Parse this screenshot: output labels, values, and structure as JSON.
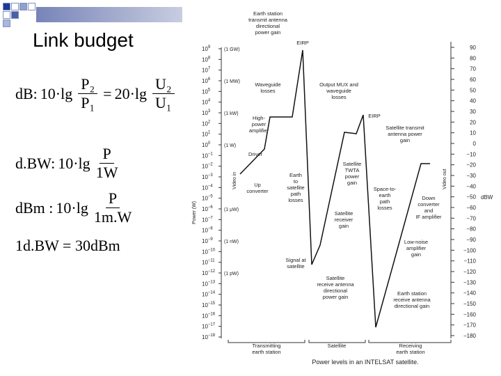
{
  "header": {
    "title": "Link budget"
  },
  "formulas": [
    {
      "prefix": "dB:",
      "lhs": "10·lg",
      "num": "P₂",
      "den": "P₁",
      "eq": "=",
      "rhs": "20·lg",
      "num2": "U₂",
      "den2": "U₁"
    },
    {
      "prefix": "d.BW:",
      "lhs": "10·lg",
      "num": "P",
      "den": "1W"
    },
    {
      "prefix": "dBm :",
      "lhs": "10·lg",
      "num": "P",
      "den": "1m.W"
    },
    {
      "text": "1d.BW = 30dBm"
    }
  ],
  "figure": {
    "left_axis_title": "Power (W)",
    "right_axis_title": "dBW",
    "video_in": "Video in",
    "video_out": "Video out",
    "left_ticks": [
      {
        "base": "10",
        "exp": "9"
      },
      {
        "base": "10",
        "exp": "8"
      },
      {
        "base": "10",
        "exp": "7"
      },
      {
        "base": "10",
        "exp": "6"
      },
      {
        "base": "10",
        "exp": "5"
      },
      {
        "base": "10",
        "exp": "4"
      },
      {
        "base": "10",
        "exp": "3"
      },
      {
        "base": "10",
        "exp": "2"
      },
      {
        "base": "10",
        "exp": "1"
      },
      {
        "base": "10",
        "exp": "0"
      },
      {
        "base": "10",
        "exp": "−1"
      },
      {
        "base": "10",
        "exp": "−2"
      },
      {
        "base": "10",
        "exp": "−3"
      },
      {
        "base": "10",
        "exp": "−4"
      },
      {
        "base": "10",
        "exp": "−5"
      },
      {
        "base": "10",
        "exp": "−6"
      },
      {
        "base": "10",
        "exp": "−7"
      },
      {
        "base": "10",
        "exp": "−8"
      },
      {
        "base": "10",
        "exp": "−9"
      },
      {
        "base": "10",
        "exp": "−10"
      },
      {
        "base": "10",
        "exp": "−11"
      },
      {
        "base": "10",
        "exp": "−12"
      },
      {
        "base": "10",
        "exp": "−13"
      },
      {
        "base": "10",
        "exp": "−14"
      },
      {
        "base": "10",
        "exp": "−15"
      },
      {
        "base": "10",
        "exp": "−16"
      },
      {
        "base": "10",
        "exp": "−17"
      },
      {
        "base": "10",
        "exp": "−18"
      }
    ],
    "left_units": [
      {
        "tick": 0,
        "text": "(1 GW)"
      },
      {
        "tick": 3,
        "text": "(1 MW)"
      },
      {
        "tick": 6,
        "text": "(1 kW)"
      },
      {
        "tick": 9,
        "text": "(1 W)"
      },
      {
        "tick": 15,
        "text": "(1 μW)"
      },
      {
        "tick": 18,
        "text": "(1 nW)"
      },
      {
        "tick": 21,
        "text": "(1 pW)"
      }
    ],
    "right_ticks": [
      "90",
      "80",
      "70",
      "60",
      "50",
      "40",
      "30",
      "20",
      "10",
      "0",
      "−10",
      "−20",
      "−30",
      "−40",
      "−50",
      "−60",
      "−70",
      "−80",
      "−90",
      "−100",
      "−110",
      "−120",
      "−130",
      "−140",
      "−150",
      "−160",
      "−170",
      "−180"
    ],
    "annotations": [
      [
        "Earth station",
        "transmit antenna",
        "directional",
        "power gain"
      ],
      [
        "EIRP"
      ],
      [
        "Waveguide",
        "losses"
      ],
      [
        "Output MUX and",
        "waveguide",
        "losses"
      ],
      [
        "High-",
        "power",
        "amplifier"
      ],
      [
        "EIRP"
      ],
      [
        "Satellite transmit",
        "antenna power",
        "gain"
      ],
      [
        "Driver"
      ],
      [
        "Earth",
        "to",
        "satellite",
        "path",
        "losses"
      ],
      [
        "Satellite",
        "TWTA",
        "power",
        "gain"
      ],
      [
        "Up",
        "converter"
      ],
      [
        "Space-to-",
        "earth",
        "path",
        "losses"
      ],
      [
        "Down",
        "converter",
        "and",
        "IF amplifier"
      ],
      [
        "Satellite",
        "receiver",
        "gain"
      ],
      [
        "Low-noise",
        "amplifier",
        "gain"
      ],
      [
        "Signal at",
        "satellite"
      ],
      [
        "Satellite",
        "receive antenna",
        "directional",
        "power gain"
      ],
      [
        "Earth station",
        "receive antenna",
        "directional gain"
      ]
    ],
    "segments": [
      [
        "Transmitting",
        "earth station"
      ],
      [
        "Satellite"
      ],
      [
        "Receiving",
        "earth station"
      ]
    ],
    "caption": "Power levels in an INTELSAT satellite."
  }
}
